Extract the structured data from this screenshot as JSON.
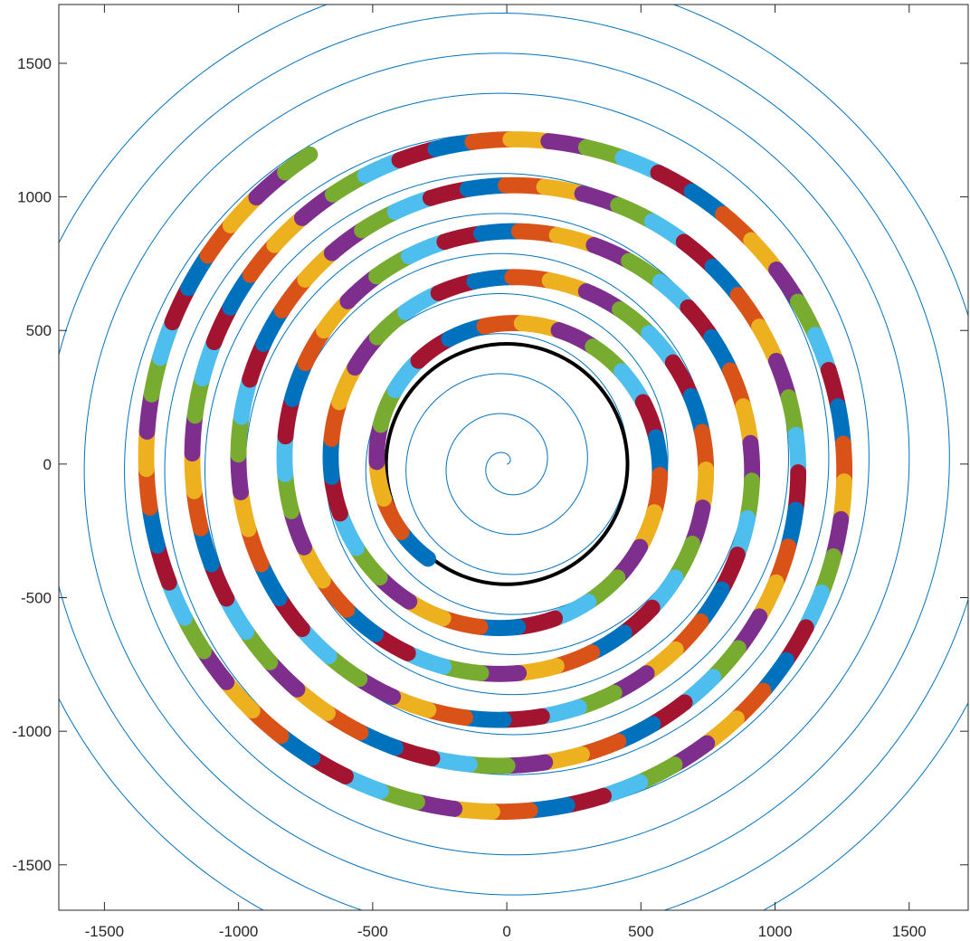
{
  "chart_data": {
    "type": "line",
    "title": "",
    "xlabel": "",
    "ylabel": "",
    "xlim": [
      -1670,
      1720
    ],
    "ylim": [
      -1670,
      1720
    ],
    "x_ticks": [
      -1500,
      -1000,
      -500,
      0,
      500,
      1000,
      1500
    ],
    "y_ticks": [
      -1500,
      -1000,
      -500,
      0,
      500,
      1000,
      1500
    ],
    "x_tick_labels": [
      "-1500",
      "-1000",
      "-500",
      "0",
      "500",
      "1000",
      "1500"
    ],
    "y_tick_labels": [
      "-1500",
      "-1000",
      "-500",
      "0",
      "500",
      "1000",
      "1500"
    ],
    "grid": false,
    "legend": "none",
    "series": [
      {
        "kind": "spiral-line",
        "color": "#0072BD",
        "line_width": 1,
        "start_radius": 0,
        "radius_growth_per_turn": 150,
        "turns": 13
      },
      {
        "kind": "circle",
        "color": "#000000",
        "line_width": 4,
        "center": [
          0,
          0
        ],
        "radius": 450
      },
      {
        "kind": "segmented-spiral",
        "start_point": [
          -290,
          -350
        ],
        "start_radius": 460,
        "radius_growth_per_turn": 172,
        "turns": 5.3,
        "segment_arc_length": 140,
        "band_width": 60,
        "color_cycle": [
          "#0072BD",
          "#D95319",
          "#EDB120",
          "#7E2F8E",
          "#77AC30",
          "#4DBEEE",
          "#A2142F"
        ]
      }
    ]
  }
}
